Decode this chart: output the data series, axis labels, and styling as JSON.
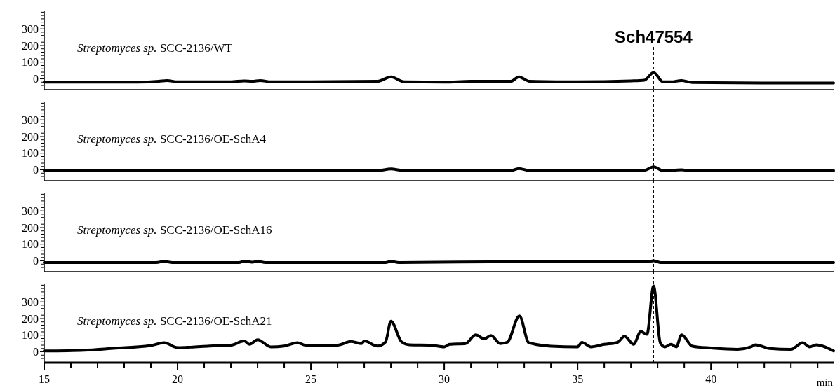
{
  "chart_data": [
    {
      "type": "line",
      "title": "Streptomyces sp. SCC-2136/WT",
      "xlim": [
        15,
        44.6
      ],
      "ylim": [
        -65,
        410
      ],
      "tick_labels": "y",
      "yticks": [
        {
          "value": -40,
          "label": null
        },
        {
          "value": -20,
          "label": null
        },
        0,
        {
          "value": 20,
          "label": null
        },
        {
          "value": 40,
          "label": null
        },
        {
          "value": 60,
          "label": null
        },
        {
          "value": 80,
          "label": null
        },
        100,
        {
          "value": 120,
          "label": null
        },
        {
          "value": 140,
          "label": null
        },
        {
          "value": 160,
          "label": null
        },
        {
          "value": 180,
          "label": null
        },
        200,
        {
          "value": 220,
          "label": null
        },
        {
          "value": 240,
          "label": null
        },
        {
          "value": 260,
          "label": null
        },
        {
          "value": 280,
          "label": null
        },
        300,
        {
          "value": 320,
          "label": null
        },
        {
          "value": 340,
          "label": null
        },
        {
          "value": 360,
          "label": null
        },
        {
          "value": 380,
          "label": null
        },
        {
          "value": 400,
          "label": null
        }
      ],
      "ref_lines": [
        {
          "axis": "x",
          "value": 37.85,
          "label": "Sch47554",
          "line_style": "dashed",
          "color": "#000000"
        }
      ],
      "series": [
        {
          "color": "#000000",
          "x": [
            15,
            18.5,
            19.3,
            19.6,
            20,
            22,
            22.5,
            22.8,
            23.1,
            23.5,
            25,
            27.5,
            28,
            28.5,
            30,
            31,
            31.3,
            32,
            32.5,
            32.8,
            33.2,
            35,
            37,
            37.5,
            37.85,
            38.2,
            38.5,
            38.9,
            39.3,
            42,
            44.6
          ],
          "values": [
            -20,
            -20,
            -15,
            -10,
            -18,
            -18,
            -12,
            -15,
            -10,
            -18,
            -18,
            -15,
            12,
            -18,
            -20,
            -15,
            -15,
            -15,
            -15,
            12,
            -15,
            -18,
            -12,
            -8,
            38,
            -18,
            -18,
            -10,
            -22,
            -25,
            -25
          ]
        }
      ]
    },
    {
      "type": "line",
      "title": "Streptomyces sp. SCC-2136/OE-SchA4",
      "xlim": [
        15,
        44.6
      ],
      "ylim": [
        -65,
        410
      ],
      "tick_labels": "y",
      "yticks": [
        {
          "value": -40,
          "label": null
        },
        {
          "value": -20,
          "label": null
        },
        0,
        {
          "value": 20,
          "label": null
        },
        {
          "value": 40,
          "label": null
        },
        {
          "value": 60,
          "label": null
        },
        {
          "value": 80,
          "label": null
        },
        100,
        {
          "value": 120,
          "label": null
        },
        {
          "value": 140,
          "label": null
        },
        {
          "value": 160,
          "label": null
        },
        {
          "value": 180,
          "label": null
        },
        200,
        {
          "value": 220,
          "label": null
        },
        {
          "value": 240,
          "label": null
        },
        {
          "value": 260,
          "label": null
        },
        {
          "value": 280,
          "label": null
        },
        300,
        {
          "value": 320,
          "label": null
        },
        {
          "value": 340,
          "label": null
        },
        {
          "value": 360,
          "label": null
        },
        {
          "value": 380,
          "label": null
        },
        {
          "value": 400,
          "label": null
        }
      ],
      "ref_lines": [
        {
          "axis": "x",
          "value": 37.85,
          "line_style": "dashed",
          "color": "#000000"
        }
      ],
      "series": [
        {
          "color": "#000000",
          "x": [
            15,
            27.5,
            28,
            28.5,
            32.5,
            32.8,
            33.2,
            37.5,
            37.85,
            38.2,
            38.9,
            39.2,
            44.6
          ],
          "values": [
            -5,
            -5,
            5,
            -5,
            -5,
            8,
            -5,
            -3,
            18,
            -5,
            0,
            -5,
            -5
          ]
        }
      ]
    },
    {
      "type": "line",
      "title": "Streptomyces sp. SCC-2136/OE-SchA16",
      "xlim": [
        15,
        44.6
      ],
      "ylim": [
        -65,
        410
      ],
      "tick_labels": "y",
      "yticks": [
        {
          "value": -40,
          "label": null
        },
        {
          "value": -20,
          "label": null
        },
        0,
        {
          "value": 20,
          "label": null
        },
        {
          "value": 40,
          "label": null
        },
        {
          "value": 60,
          "label": null
        },
        {
          "value": 80,
          "label": null
        },
        100,
        {
          "value": 120,
          "label": null
        },
        {
          "value": 140,
          "label": null
        },
        {
          "value": 160,
          "label": null
        },
        {
          "value": 180,
          "label": null
        },
        200,
        {
          "value": 220,
          "label": null
        },
        {
          "value": 240,
          "label": null
        },
        {
          "value": 260,
          "label": null
        },
        {
          "value": 280,
          "label": null
        },
        300,
        {
          "value": 320,
          "label": null
        },
        {
          "value": 340,
          "label": null
        },
        {
          "value": 360,
          "label": null
        },
        {
          "value": 380,
          "label": null
        },
        {
          "value": 400,
          "label": null
        }
      ],
      "ref_lines": [
        {
          "axis": "x",
          "value": 37.85,
          "line_style": "dashed",
          "color": "#000000"
        }
      ],
      "series": [
        {
          "color": "#000000",
          "x": [
            15,
            19.2,
            19.5,
            19.8,
            22.3,
            22.5,
            22.8,
            23,
            23.3,
            27.8,
            28,
            28.3,
            32.8,
            37.6,
            37.85,
            38.1,
            44.6
          ],
          "values": [
            -10,
            -10,
            -3,
            -10,
            -10,
            -3,
            -8,
            -3,
            -10,
            -10,
            -3,
            -10,
            -5,
            -5,
            0,
            -10,
            -10
          ]
        }
      ]
    },
    {
      "type": "line",
      "title": "Streptomyces sp. SCC-2136/OE-SchA21",
      "xlabel": "min",
      "xlim": [
        15,
        44.6
      ],
      "ylim": [
        -65,
        410
      ],
      "xticks": [
        15,
        {
          "value": 16,
          "label": null
        },
        {
          "value": 17,
          "label": null
        },
        {
          "value": 18,
          "label": null
        },
        {
          "value": 19,
          "label": null
        },
        20,
        {
          "value": 21,
          "label": null
        },
        {
          "value": 22,
          "label": null
        },
        {
          "value": 23,
          "label": null
        },
        {
          "value": 24,
          "label": null
        },
        25,
        {
          "value": 26,
          "label": null
        },
        {
          "value": 27,
          "label": null
        },
        {
          "value": 28,
          "label": null
        },
        {
          "value": 29,
          "label": null
        },
        30,
        {
          "value": 31,
          "label": null
        },
        {
          "value": 32,
          "label": null
        },
        {
          "value": 33,
          "label": null
        },
        {
          "value": 34,
          "label": null
        },
        35,
        {
          "value": 36,
          "label": null
        },
        {
          "value": 37,
          "label": null
        },
        {
          "value": 38,
          "label": null
        },
        {
          "value": 39,
          "label": null
        },
        40,
        {
          "value": 41,
          "label": null
        },
        {
          "value": 42,
          "label": null
        },
        {
          "value": 43,
          "label": null
        },
        {
          "value": 44,
          "label": null
        }
      ],
      "yticks": [
        {
          "value": -40,
          "label": null
        },
        {
          "value": -20,
          "label": null
        },
        0,
        {
          "value": 20,
          "label": null
        },
        {
          "value": 40,
          "label": null
        },
        {
          "value": 60,
          "label": null
        },
        {
          "value": 80,
          "label": null
        },
        100,
        {
          "value": 120,
          "label": null
        },
        {
          "value": 140,
          "label": null
        },
        {
          "value": 160,
          "label": null
        },
        {
          "value": 180,
          "label": null
        },
        200,
        {
          "value": 220,
          "label": null
        },
        {
          "value": 240,
          "label": null
        },
        {
          "value": 260,
          "label": null
        },
        {
          "value": 280,
          "label": null
        },
        300,
        {
          "value": 320,
          "label": null
        },
        {
          "value": 340,
          "label": null
        },
        {
          "value": 360,
          "label": null
        },
        {
          "value": 380,
          "label": null
        },
        {
          "value": 400,
          "label": null
        }
      ],
      "ref_lines": [
        {
          "axis": "x",
          "value": 37.85,
          "line_style": "dashed",
          "color": "#000000"
        }
      ],
      "series": [
        {
          "color": "#000000",
          "x": [
            15,
            16.5,
            17.5,
            19,
            19.5,
            20,
            20.5,
            21.2,
            22,
            22.5,
            22.7,
            23,
            23.5,
            24,
            24.5,
            24.8,
            26,
            26.5,
            26.9,
            27,
            27.5,
            27.8,
            28,
            28.4,
            28.7,
            29.5,
            30,
            30.2,
            30.8,
            31.18,
            31.5,
            31.75,
            32.1,
            32.36,
            32.82,
            33.17,
            34,
            35,
            35.16,
            35.5,
            36,
            36.5,
            36.76,
            37.1,
            37.37,
            37.6,
            37.85,
            38.1,
            38.28,
            38.5,
            38.7,
            38.9,
            39.3,
            40,
            41,
            41.5,
            41.67,
            42.2,
            43,
            43.44,
            43.7,
            43.95,
            44.6
          ],
          "values": [
            5,
            10,
            20,
            38,
            55,
            25,
            28,
            35,
            40,
            65,
            45,
            73,
            30,
            35,
            55,
            40,
            40,
            62,
            50,
            65,
            35,
            60,
            184,
            60,
            42,
            40,
            30,
            45,
            50,
            102,
            78,
            98,
            50,
            57,
            216,
            55,
            34,
            30,
            57,
            30,
            45,
            57,
            94,
            45,
            122,
            105,
            395,
            55,
            30,
            45,
            30,
            102,
            34,
            23,
            15,
            30,
            42,
            20,
            15,
            55,
            30,
            42,
            5
          ]
        }
      ]
    }
  ]
}
